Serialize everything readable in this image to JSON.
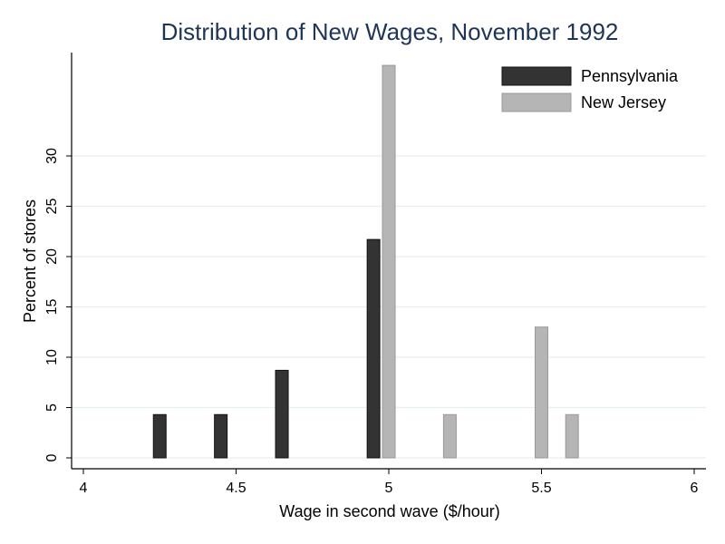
{
  "chart_data": {
    "type": "bar",
    "title": "Distribution of New Wages, November 1992",
    "xlabel": "Wage in second wave ($/hour)",
    "ylabel": "Percent of stores",
    "xlim": [
      4,
      6
    ],
    "ylim": [
      0,
      39
    ],
    "xticks": [
      "4",
      "4.5",
      "5",
      "5.5",
      "6"
    ],
    "yticks": [
      "0",
      "5",
      "10",
      "15",
      "20",
      "25",
      "30"
    ],
    "grid": true,
    "legend_position": "top-right",
    "series": [
      {
        "name": "Pennsylvania",
        "color": "#333333",
        "points": [
          {
            "x": 4.25,
            "y": 4.3
          },
          {
            "x": 4.45,
            "y": 4.3
          },
          {
            "x": 4.65,
            "y": 8.7
          },
          {
            "x": 4.95,
            "y": 21.7
          }
        ]
      },
      {
        "name": "New Jersey",
        "color": "#b5b5b5",
        "points": [
          {
            "x": 5.0,
            "y": 39.0
          },
          {
            "x": 5.2,
            "y": 4.3
          },
          {
            "x": 5.5,
            "y": 13.0
          },
          {
            "x": 5.6,
            "y": 4.3
          }
        ]
      }
    ]
  }
}
